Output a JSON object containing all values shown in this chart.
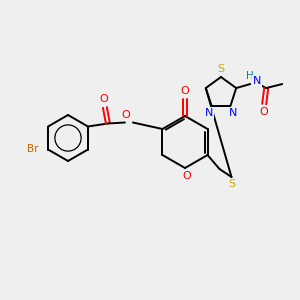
{
  "bg_color": "#efefef",
  "bond_color": "#000000",
  "atom_colors": {
    "O": "#ff0000",
    "N": "#0000ff",
    "S": "#ccaa00",
    "Br": "#cc6600",
    "H": "#008888",
    "C": "#000000"
  },
  "figsize": [
    3.0,
    3.0
  ],
  "dpi": 100
}
